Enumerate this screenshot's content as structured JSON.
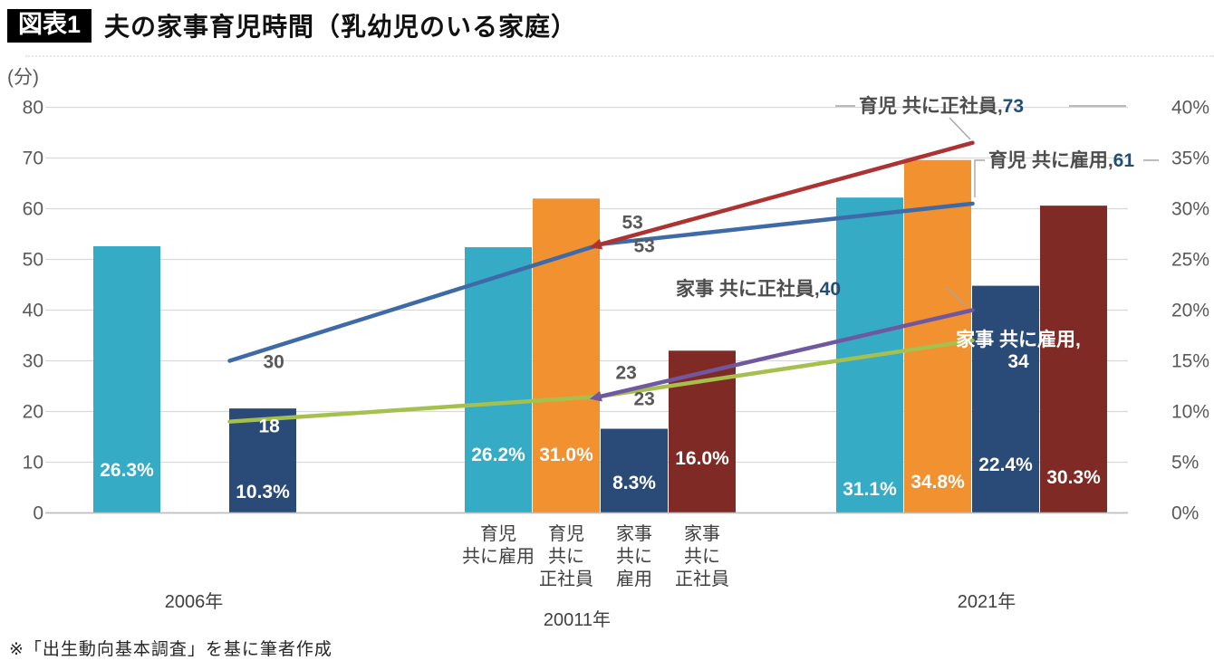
{
  "header": {
    "badge": "図表1",
    "title": "夫の家事育児時間（乳幼児のいる家庭）"
  },
  "footnote": "※「出生動向基本調査」を基に筆者作成",
  "colors": {
    "bar_cyan": "#36abc5",
    "bar_orange": "#f2912f",
    "bar_navy": "#2a4a77",
    "bar_darkred": "#802a26",
    "line_blue": "#3e6aa8",
    "line_red": "#ac3331",
    "line_green": "#a6c04d",
    "line_purple": "#6f58a0",
    "grid": "#d9d9d9",
    "axis_line": "#bfbfbf",
    "axis_text": "#595959",
    "label_dark": "#404040",
    "value_navy": "#1f4e79",
    "annotation_name": "#4d4d4d",
    "leader": "#a6a6a6",
    "white": "#ffffff"
  },
  "chart_data": {
    "type": "combo (grouped bar on right % axis + line on left minutes axis)",
    "title": "図表1 夫の家事育児時間（乳幼児のいる家庭）",
    "left_axis": {
      "unit_label": "(分)",
      "min": 0,
      "max": 80,
      "step": 10,
      "ticks": [
        "0",
        "10",
        "20",
        "30",
        "40",
        "50",
        "60",
        "70",
        "80"
      ]
    },
    "right_axis": {
      "min": 0,
      "max": 40,
      "ticks": [
        "0%",
        "5%",
        "10%",
        "15%",
        "20%",
        "25%",
        "30%",
        "35%",
        "40%"
      ]
    },
    "groups": [
      {
        "year": "2006年"
      },
      {
        "year": "20011年",
        "bar_labels": [
          [
            "育児",
            "共に雇用"
          ],
          [
            "育児",
            "共に",
            "正社員"
          ],
          [
            "家事",
            "共に",
            "雇用"
          ],
          [
            "家事",
            "共に",
            "正社員"
          ]
        ]
      },
      {
        "year": "2021年"
      }
    ],
    "bar_series": [
      {
        "name": "育児 共に雇用（割合）",
        "color_key": "bar_cyan",
        "values": [
          26.3,
          26.2,
          31.1
        ],
        "value_labels": [
          "26.3%",
          "26.2%",
          "31.1%"
        ]
      },
      {
        "name": "育児 共に正社員（割合）",
        "color_key": "bar_orange",
        "values": [
          null,
          31.0,
          34.8
        ],
        "value_labels": [
          null,
          "31.0%",
          "34.8%"
        ]
      },
      {
        "name": "家事 共に雇用（割合）",
        "color_key": "bar_navy",
        "values": [
          10.3,
          8.3,
          22.4
        ],
        "value_labels": [
          "10.3%",
          "8.3%",
          "22.4%"
        ]
      },
      {
        "name": "家事 共に正社員（割合）",
        "color_key": "bar_darkred",
        "values": [
          null,
          16.0,
          30.3
        ],
        "value_labels": [
          null,
          "16.0%",
          "30.3%"
        ]
      }
    ],
    "line_series": [
      {
        "name": "育児 共に雇用",
        "color_key": "line_blue",
        "unit": "分",
        "values": [
          30,
          53,
          61
        ],
        "point_labels": [
          "30",
          "53",
          null
        ],
        "start_arrow": false
      },
      {
        "name": "育児 共に正社員",
        "color_key": "line_red",
        "unit": "分",
        "values": [
          null,
          53,
          73
        ],
        "point_labels": [
          null,
          "53",
          null
        ],
        "start_arrow": true
      },
      {
        "name": "家事 共に雇用",
        "color_key": "line_green",
        "unit": "分",
        "values": [
          18,
          23,
          34
        ],
        "point_labels": [
          "18",
          "23",
          null
        ],
        "start_arrow": false
      },
      {
        "name": "家事 共に正社員",
        "color_key": "line_purple",
        "unit": "分",
        "values": [
          null,
          23,
          40
        ],
        "point_labels": [
          null,
          "23",
          null
        ],
        "start_arrow": true
      }
    ],
    "annotations": {
      "red_end": {
        "name": "育児 共に正社員,",
        "value": "73"
      },
      "blue_end": {
        "name": "育児 共に雇用,",
        "value": "61"
      },
      "purple_end": {
        "name": "家事 共に正社員,",
        "value": "40"
      },
      "green_end": {
        "line1": "家事 共に雇用,",
        "line2": "34"
      }
    }
  }
}
